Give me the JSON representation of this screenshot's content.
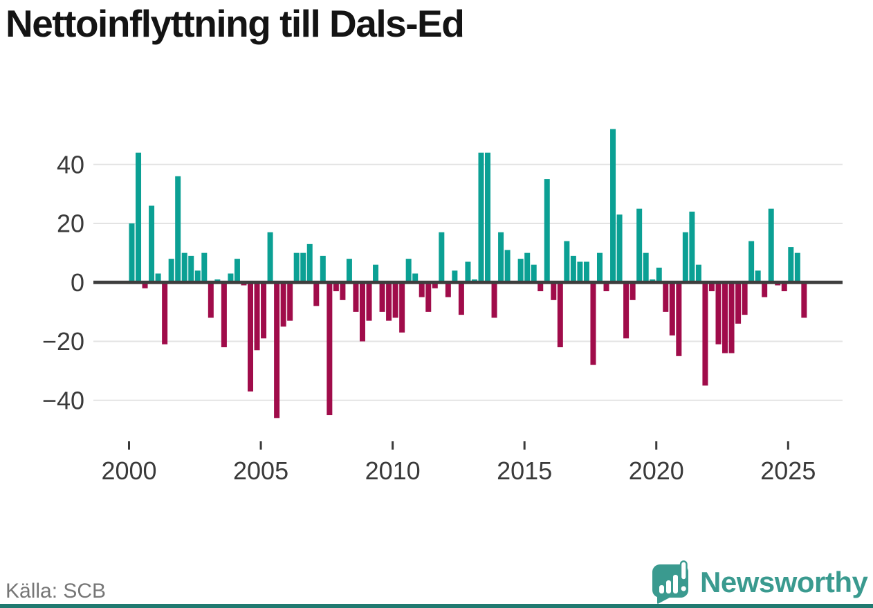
{
  "title": "Nettoinflyttning till Dals-Ed",
  "footer": {
    "source": "Källa: SCB",
    "logo_text": "Newsworthy"
  },
  "colors": {
    "positive_bar": "#0ba094",
    "negative_bar": "#a00c4a",
    "zero_axis": "#3e3e3e",
    "gridline": "#e3e3e3",
    "tick_label": "#3a3a3a",
    "title_text": "#141414",
    "source_text": "#767676",
    "logo_teal": "#3a9a8f",
    "bottom_strip": "#1f7a70",
    "background": "#ffffff"
  },
  "chart_data": {
    "type": "bar",
    "title": "Nettoinflyttning till Dals-Ed",
    "frequency": "quarterly",
    "x_start": "2000Q1",
    "x_end": "2025Q3",
    "ylim": [
      -50,
      56
    ],
    "grid": true,
    "legend": false,
    "y_ticks": [
      {
        "value": 40,
        "label": "40"
      },
      {
        "value": 20,
        "label": "20"
      },
      {
        "value": 0,
        "label": "0"
      },
      {
        "value": -20,
        "label": "−20"
      },
      {
        "value": -40,
        "label": "−40"
      }
    ],
    "x_ticks": [
      {
        "value": 2000,
        "label": "2000"
      },
      {
        "value": 2005,
        "label": "2005"
      },
      {
        "value": 2010,
        "label": "2010"
      },
      {
        "value": 2015,
        "label": "2015"
      },
      {
        "value": 2020,
        "label": "2020"
      },
      {
        "value": 2025,
        "label": "2025"
      }
    ],
    "series": [
      {
        "name": "Nettoinflyttning",
        "values": [
          20,
          44,
          -2,
          26,
          3,
          -21,
          8,
          36,
          10,
          9,
          4,
          10,
          -12,
          1,
          -22,
          3,
          8,
          -1,
          -37,
          -23,
          -19,
          17,
          -46,
          -15,
          -13,
          10,
          10,
          13,
          -8,
          9,
          -45,
          -3,
          -6,
          8,
          -10,
          -20,
          -13,
          6,
          -10,
          -13,
          -12,
          -17,
          8,
          3,
          -5,
          -10,
          -2,
          17,
          -5,
          4,
          -11,
          7,
          1,
          44,
          44,
          -12,
          17,
          11,
          0,
          8,
          10,
          6,
          -3,
          35,
          -6,
          -22,
          14,
          9,
          7,
          7,
          -28,
          10,
          -3,
          52,
          23,
          -19,
          -6,
          25,
          10,
          1,
          5,
          -10,
          -18,
          -25,
          17,
          24,
          6,
          -35,
          -3,
          -21,
          -24,
          -24,
          -14,
          -11,
          14,
          4,
          -5,
          25,
          -1,
          -3,
          12,
          10,
          -12
        ]
      }
    ]
  }
}
